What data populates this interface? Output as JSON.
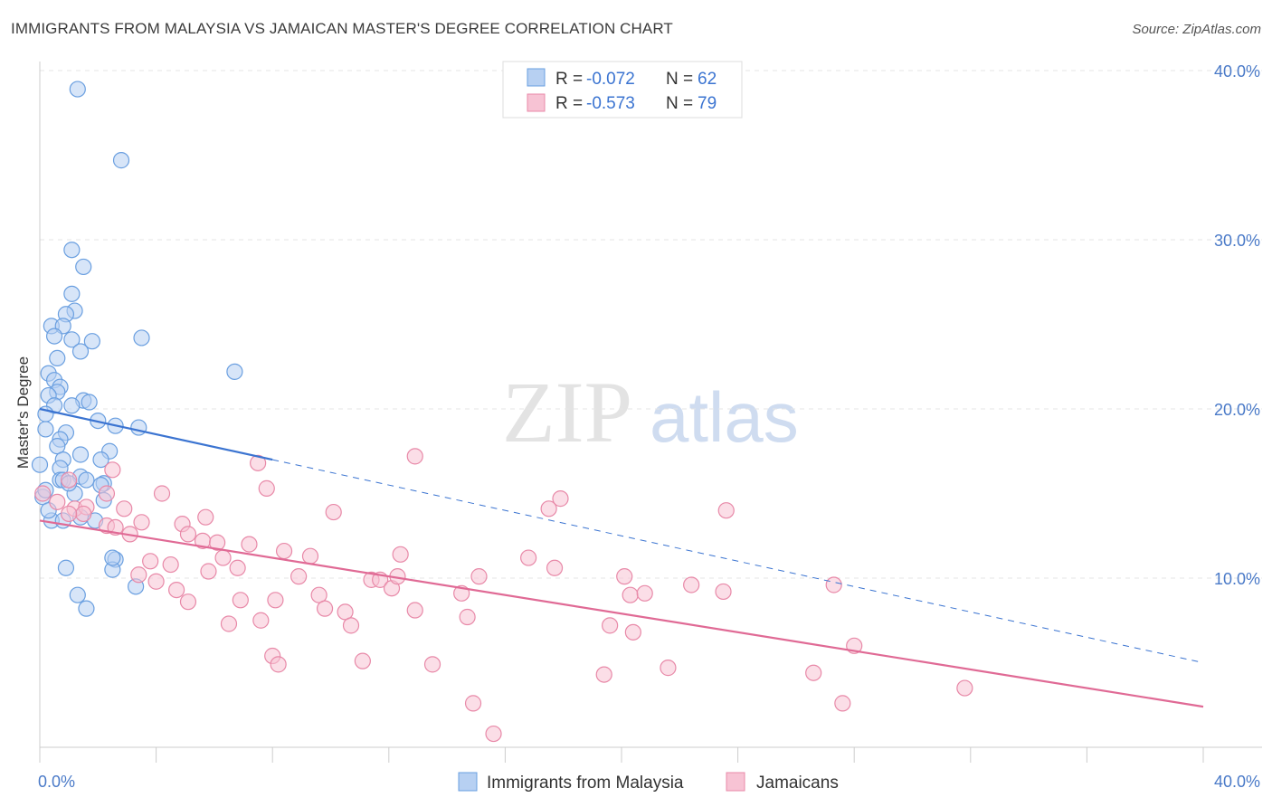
{
  "title": "IMMIGRANTS FROM MALAYSIA VS JAMAICAN MASTER'S DEGREE CORRELATION CHART",
  "source": "Source: ZipAtlas.com",
  "watermark": {
    "zip": "ZIP",
    "atlas": "atlas"
  },
  "colors": {
    "blue": "#6a9fe0",
    "blue_fill": "#b7d0f2",
    "blue_line": "#3b74d1",
    "pink": "#e889a8",
    "pink_fill": "#f7c3d4",
    "pink_line": "#e06a95",
    "tick": "#4a7ac8"
  },
  "legend": {
    "rows": [
      {
        "r_label": "R = ",
        "r_value": "-0.072",
        "n_label": "N = ",
        "n_value": "62"
      },
      {
        "r_label": "R = ",
        "r_value": "-0.573",
        "n_label": "N = ",
        "n_value": "79"
      }
    ]
  },
  "bottom_legend": [
    "Immigrants from Malaysia",
    "Jamaicans"
  ],
  "chart_data": {
    "type": "scatter",
    "title": "IMMIGRANTS FROM MALAYSIA VS JAMAICAN MASTER'S DEGREE CORRELATION CHART",
    "xlabel": "",
    "ylabel": "Master's Degree",
    "xlim": [
      0,
      40
    ],
    "ylim": [
      0,
      40
    ],
    "x_ticks": [
      "0.0%",
      "40.0%"
    ],
    "y_ticks": [
      "10.0%",
      "20.0%",
      "30.0%",
      "40.0%"
    ],
    "y_tick_values": [
      10,
      20,
      30,
      40
    ],
    "grid": true,
    "legend_position": "top-center",
    "series": [
      {
        "name": "Immigrants from Malaysia",
        "r": -0.072,
        "n": 62,
        "trend": {
          "x1": 0,
          "y1": 20.0,
          "x2": 8,
          "y2": 17.0,
          "dashed_to_x": 40,
          "dashed_to_y": 5.0
        },
        "points": [
          [
            1.3,
            38.9
          ],
          [
            2.8,
            34.7
          ],
          [
            1.1,
            29.4
          ],
          [
            1.5,
            28.4
          ],
          [
            1.1,
            26.8
          ],
          [
            1.2,
            25.8
          ],
          [
            0.9,
            25.6
          ],
          [
            0.4,
            24.9
          ],
          [
            0.8,
            24.9
          ],
          [
            0.5,
            24.3
          ],
          [
            1.1,
            24.1
          ],
          [
            1.8,
            24.0
          ],
          [
            3.5,
            24.2
          ],
          [
            1.4,
            23.4
          ],
          [
            0.6,
            23.0
          ],
          [
            0.3,
            22.1
          ],
          [
            0.5,
            21.7
          ],
          [
            6.7,
            22.2
          ],
          [
            0.7,
            21.3
          ],
          [
            0.6,
            21.0
          ],
          [
            0.3,
            20.8
          ],
          [
            1.5,
            20.5
          ],
          [
            1.7,
            20.4
          ],
          [
            0.5,
            20.2
          ],
          [
            1.1,
            20.2
          ],
          [
            0.2,
            19.7
          ],
          [
            2.0,
            19.3
          ],
          [
            2.6,
            19.0
          ],
          [
            3.4,
            18.9
          ],
          [
            0.2,
            18.8
          ],
          [
            0.9,
            18.6
          ],
          [
            0.7,
            18.2
          ],
          [
            0.6,
            17.8
          ],
          [
            1.4,
            17.3
          ],
          [
            2.4,
            17.5
          ],
          [
            0.8,
            17.0
          ],
          [
            2.1,
            17.0
          ],
          [
            0.0,
            16.7
          ],
          [
            0.7,
            16.5
          ],
          [
            1.4,
            16.0
          ],
          [
            0.7,
            15.8
          ],
          [
            0.8,
            15.8
          ],
          [
            2.2,
            15.6
          ],
          [
            1.2,
            15.0
          ],
          [
            0.1,
            14.8
          ],
          [
            2.2,
            14.6
          ],
          [
            0.4,
            13.4
          ],
          [
            0.8,
            13.4
          ],
          [
            1.9,
            13.4
          ],
          [
            2.6,
            11.1
          ],
          [
            2.5,
            10.5
          ],
          [
            0.9,
            10.6
          ],
          [
            3.3,
            9.5
          ],
          [
            1.3,
            9.0
          ],
          [
            1.6,
            8.2
          ],
          [
            1.6,
            15.8
          ],
          [
            2.1,
            15.5
          ],
          [
            0.3,
            14.0
          ],
          [
            1.0,
            15.6
          ],
          [
            0.2,
            15.2
          ],
          [
            2.5,
            11.2
          ],
          [
            1.4,
            13.6
          ]
        ]
      },
      {
        "name": "Jamaicans",
        "r": -0.573,
        "n": 79,
        "trend": {
          "x1": 0,
          "y1": 13.4,
          "x2": 40,
          "y2": 2.4
        },
        "points": [
          [
            0.1,
            15.0
          ],
          [
            0.6,
            14.5
          ],
          [
            1.0,
            15.8
          ],
          [
            1.2,
            14.1
          ],
          [
            1.6,
            14.2
          ],
          [
            2.5,
            16.4
          ],
          [
            2.3,
            15.0
          ],
          [
            1.5,
            13.8
          ],
          [
            2.3,
            13.1
          ],
          [
            2.9,
            14.1
          ],
          [
            2.6,
            13.0
          ],
          [
            3.1,
            12.6
          ],
          [
            3.5,
            13.3
          ],
          [
            4.2,
            15.0
          ],
          [
            4.9,
            13.2
          ],
          [
            5.7,
            13.6
          ],
          [
            5.1,
            12.6
          ],
          [
            5.6,
            12.2
          ],
          [
            6.1,
            12.1
          ],
          [
            7.2,
            12.0
          ],
          [
            3.8,
            11.0
          ],
          [
            4.5,
            10.8
          ],
          [
            6.3,
            11.2
          ],
          [
            6.8,
            10.6
          ],
          [
            8.4,
            11.6
          ],
          [
            9.3,
            11.3
          ],
          [
            3.4,
            10.2
          ],
          [
            4.7,
            9.3
          ],
          [
            5.1,
            8.6
          ],
          [
            6.5,
            7.3
          ],
          [
            7.6,
            7.5
          ],
          [
            6.9,
            8.7
          ],
          [
            8.1,
            8.7
          ],
          [
            8.9,
            10.1
          ],
          [
            9.6,
            9.0
          ],
          [
            9.8,
            8.2
          ],
          [
            10.1,
            13.9
          ],
          [
            10.5,
            8.0
          ],
          [
            10.7,
            7.2
          ],
          [
            11.1,
            5.1
          ],
          [
            11.4,
            9.9
          ],
          [
            11.7,
            9.9
          ],
          [
            12.1,
            9.4
          ],
          [
            12.4,
            11.4
          ],
          [
            12.3,
            10.1
          ],
          [
            12.9,
            8.1
          ],
          [
            13.5,
            4.9
          ],
          [
            12.9,
            17.2
          ],
          [
            14.5,
            9.1
          ],
          [
            14.7,
            7.7
          ],
          [
            14.9,
            2.6
          ],
          [
            15.1,
            10.1
          ],
          [
            15.6,
            0.8
          ],
          [
            16.8,
            11.2
          ],
          [
            17.5,
            14.1
          ],
          [
            17.7,
            10.6
          ],
          [
            17.9,
            14.7
          ],
          [
            19.4,
            4.3
          ],
          [
            19.6,
            7.2
          ],
          [
            20.1,
            10.1
          ],
          [
            20.3,
            9.0
          ],
          [
            20.4,
            6.8
          ],
          [
            20.8,
            9.1
          ],
          [
            21.6,
            4.7
          ],
          [
            22.4,
            9.6
          ],
          [
            23.5,
            9.2
          ],
          [
            23.6,
            14.0
          ],
          [
            26.6,
            4.4
          ],
          [
            27.3,
            9.6
          ],
          [
            27.6,
            2.6
          ],
          [
            28.0,
            6.0
          ],
          [
            31.8,
            3.5
          ],
          [
            8.0,
            5.4
          ],
          [
            8.2,
            4.9
          ],
          [
            7.5,
            16.8
          ],
          [
            7.8,
            15.3
          ],
          [
            1.0,
            13.8
          ],
          [
            4.0,
            9.8
          ],
          [
            5.8,
            10.4
          ]
        ]
      }
    ]
  }
}
